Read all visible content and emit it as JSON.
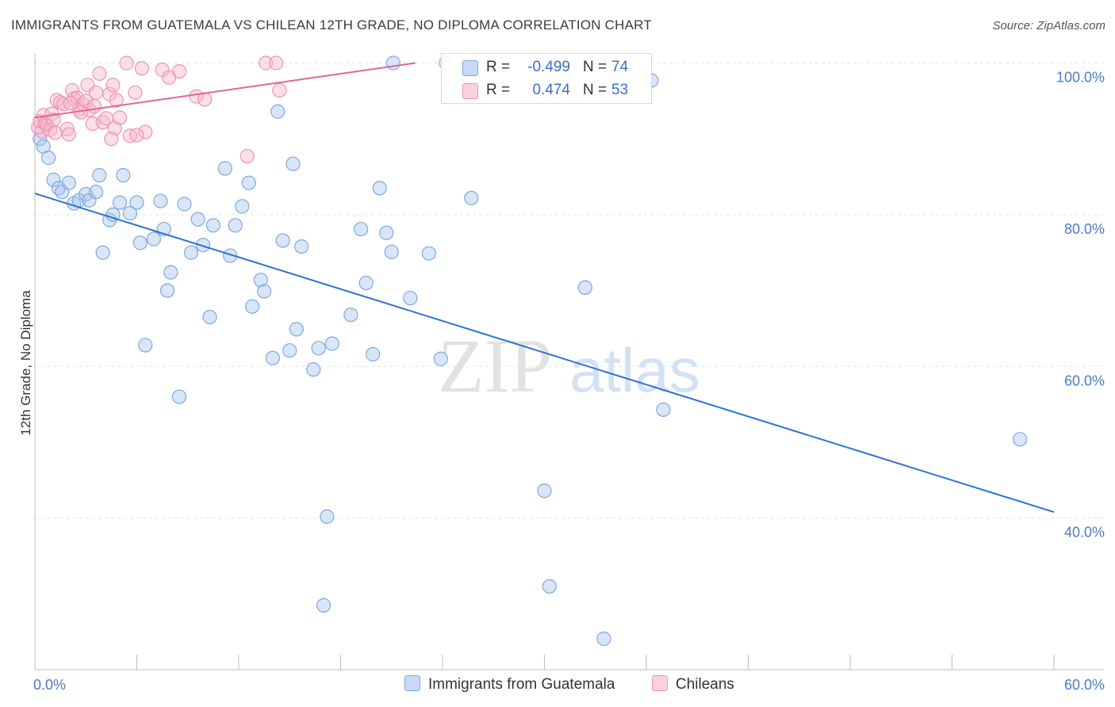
{
  "title": "IMMIGRANTS FROM GUATEMALA VS CHILEAN 12TH GRADE, NO DIPLOMA CORRELATION CHART",
  "source": "Source: ZipAtlas.com",
  "watermark": {
    "zip": "ZIP",
    "atlas": "atlas"
  },
  "colors": {
    "blue_fill": "#aac8f0",
    "blue_stroke": "#7ea8e0",
    "blue_line": "#2f73d0",
    "pink_fill": "#f6b9cc",
    "pink_stroke": "#ee94b0",
    "pink_line": "#e4639a",
    "tick_text": "#4a7cc9"
  },
  "legend": {
    "rows": [
      {
        "r_label": "R =",
        "r_value": "-0.499",
        "n_label": "N =",
        "n_value": "74",
        "color": "#aac8f0"
      },
      {
        "r_label": "R =",
        "r_value": "0.474",
        "n_label": "N =",
        "n_value": "53",
        "color": "#f6b9cc"
      }
    ]
  },
  "bottom_legend": [
    {
      "label": "Immigrants from Guatemala",
      "color": "#aac8f0"
    },
    {
      "label": "Chileans",
      "color": "#f6b9cc"
    }
  ],
  "chart_data": {
    "type": "scatter",
    "title": "IMMIGRANTS FROM GUATEMALA VS CHILEAN 12TH GRADE, NO DIPLOMA CORRELATION CHART",
    "xlabel": "",
    "ylabel": "12th Grade, No Diploma",
    "xlim": [
      0,
      60
    ],
    "ylim": [
      21,
      100
    ],
    "x_tick_labels": [
      "0.0%",
      "60.0%"
    ],
    "y_tick_labels": [
      "100.0%",
      "80.0%",
      "60.0%",
      "40.0%"
    ],
    "y_ticks": [
      100,
      80,
      60,
      40
    ],
    "grid": true,
    "legend_position": "top-center",
    "series": [
      {
        "name": "Immigrants from Guatemala",
        "color": "#aac8f0",
        "points": [
          [
            0.3,
            90.0
          ],
          [
            0.5,
            89.0
          ],
          [
            0.8,
            87.5
          ],
          [
            1.1,
            84.6
          ],
          [
            1.4,
            83.5
          ],
          [
            1.6,
            83.0
          ],
          [
            2.0,
            84.2
          ],
          [
            2.3,
            81.5
          ],
          [
            2.6,
            81.9
          ],
          [
            3.0,
            82.7
          ],
          [
            3.2,
            81.9
          ],
          [
            3.6,
            83.0
          ],
          [
            3.8,
            85.2
          ],
          [
            4.4,
            79.3
          ],
          [
            4.6,
            80.0
          ],
          [
            5.0,
            81.6
          ],
          [
            5.2,
            85.2
          ],
          [
            5.6,
            80.2
          ],
          [
            6.0,
            81.6
          ],
          [
            6.2,
            76.3
          ],
          [
            4.0,
            75.0
          ],
          [
            7.0,
            76.8
          ],
          [
            7.4,
            81.8
          ],
          [
            7.6,
            78.1
          ],
          [
            8.0,
            72.4
          ],
          [
            7.8,
            70.0
          ],
          [
            8.8,
            81.4
          ],
          [
            9.2,
            75.0
          ],
          [
            9.6,
            79.4
          ],
          [
            9.9,
            76.0
          ],
          [
            10.3,
            66.5
          ],
          [
            10.5,
            78.6
          ],
          [
            11.2,
            86.1
          ],
          [
            11.5,
            74.6
          ],
          [
            11.8,
            78.6
          ],
          [
            12.2,
            81.1
          ],
          [
            12.6,
            84.2
          ],
          [
            6.5,
            62.8
          ],
          [
            8.5,
            56.0
          ],
          [
            12.8,
            67.9
          ],
          [
            13.3,
            71.4
          ],
          [
            13.5,
            69.9
          ],
          [
            14.0,
            61.1
          ],
          [
            14.3,
            93.6
          ],
          [
            14.6,
            76.6
          ],
          [
            15.0,
            62.1
          ],
          [
            15.2,
            86.7
          ],
          [
            15.4,
            64.9
          ],
          [
            15.7,
            75.8
          ],
          [
            16.4,
            59.6
          ],
          [
            16.7,
            62.4
          ],
          [
            17.2,
            40.2
          ],
          [
            17.5,
            63.0
          ],
          [
            18.6,
            66.8
          ],
          [
            19.2,
            78.1
          ],
          [
            19.5,
            71.0
          ],
          [
            19.9,
            61.6
          ],
          [
            20.3,
            83.5
          ],
          [
            20.7,
            77.6
          ],
          [
            21.0,
            75.1
          ],
          [
            21.1,
            100.0
          ],
          [
            22.1,
            69.0
          ],
          [
            23.2,
            74.9
          ],
          [
            23.9,
            61.0
          ],
          [
            25.7,
            82.2
          ],
          [
            30.0,
            43.6
          ],
          [
            30.3,
            31.0
          ],
          [
            32.4,
            70.4
          ],
          [
            33.5,
            24.1
          ],
          [
            36.3,
            97.7
          ],
          [
            37.0,
            54.3
          ],
          [
            17.0,
            28.5
          ],
          [
            58.0,
            50.4
          ],
          [
            0.6,
            92.0
          ]
        ]
      },
      {
        "name": "Chileans",
        "color": "#f6b9cc",
        "points": [
          [
            0.2,
            91.5
          ],
          [
            0.3,
            92.3
          ],
          [
            0.4,
            91.0
          ],
          [
            0.5,
            93.1
          ],
          [
            0.6,
            92.0
          ],
          [
            0.7,
            91.8
          ],
          [
            0.9,
            91.2
          ],
          [
            1.0,
            93.3
          ],
          [
            1.1,
            92.5
          ],
          [
            1.3,
            95.1
          ],
          [
            1.5,
            94.8
          ],
          [
            1.7,
            94.6
          ],
          [
            1.9,
            91.3
          ],
          [
            2.0,
            90.6
          ],
          [
            2.2,
            96.4
          ],
          [
            2.3,
            95.3
          ],
          [
            2.5,
            95.4
          ],
          [
            2.6,
            93.9
          ],
          [
            2.8,
            94.6
          ],
          [
            3.0,
            95.0
          ],
          [
            3.1,
            97.1
          ],
          [
            3.2,
            93.8
          ],
          [
            3.4,
            92.0
          ],
          [
            3.6,
            96.1
          ],
          [
            3.8,
            98.6
          ],
          [
            4.0,
            92.2
          ],
          [
            4.2,
            92.7
          ],
          [
            4.4,
            95.9
          ],
          [
            4.6,
            97.1
          ],
          [
            4.7,
            91.4
          ],
          [
            4.8,
            95.1
          ],
          [
            5.0,
            92.8
          ],
          [
            5.4,
            100.0
          ],
          [
            5.6,
            90.4
          ],
          [
            5.9,
            96.1
          ],
          [
            6.3,
            99.3
          ],
          [
            6.5,
            90.9
          ],
          [
            7.5,
            99.1
          ],
          [
            7.9,
            98.1
          ],
          [
            8.5,
            98.9
          ],
          [
            9.5,
            95.6
          ],
          [
            10.0,
            95.2
          ],
          [
            12.5,
            87.7
          ],
          [
            13.6,
            100.0
          ],
          [
            14.2,
            100.0
          ],
          [
            14.4,
            96.4
          ],
          [
            24.2,
            100.0
          ],
          [
            1.2,
            90.8
          ],
          [
            2.7,
            93.5
          ],
          [
            3.5,
            94.3
          ],
          [
            4.5,
            90.0
          ],
          [
            6.0,
            90.5
          ],
          [
            2.1,
            94.7
          ]
        ]
      }
    ],
    "trend_lines": [
      {
        "series": "Immigrants from Guatemala",
        "x": [
          0,
          60
        ],
        "y": [
          82.8,
          40.8
        ]
      },
      {
        "series": "Chileans",
        "x": [
          0,
          22.4
        ],
        "y": [
          92.8,
          100.0
        ]
      }
    ]
  }
}
